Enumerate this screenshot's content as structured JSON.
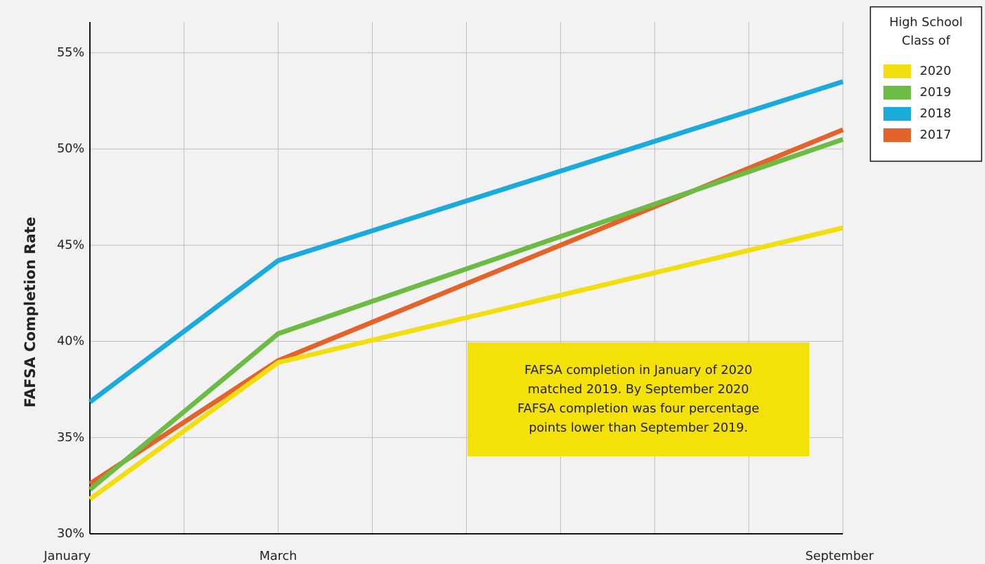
{
  "chart_data": {
    "type": "line",
    "y_axis_label": "FAFSA Completion Rate",
    "x": [
      1,
      3,
      9
    ],
    "xlim": [
      1,
      9
    ],
    "xticks": [
      {
        "value": 1,
        "label": "January"
      },
      {
        "value": 3,
        "label": "March"
      },
      {
        "value": 9,
        "label": "September"
      }
    ],
    "x_grid_minor": [
      2,
      4,
      5,
      6,
      7,
      8
    ],
    "ylim": [
      30,
      56.6
    ],
    "yticks": [
      {
        "value": 30,
        "label": "30%"
      },
      {
        "value": 35,
        "label": "35%"
      },
      {
        "value": 40,
        "label": "40%"
      },
      {
        "value": 45,
        "label": "45%"
      },
      {
        "value": 50,
        "label": "50%"
      },
      {
        "value": 55,
        "label": "55%"
      }
    ],
    "grid": true,
    "legend_title": [
      "High School",
      "Class of"
    ],
    "legend_position": "upper right",
    "series": [
      {
        "name": "2020",
        "color": "#f2de0f",
        "values": [
          31.8,
          38.9,
          45.9
        ]
      },
      {
        "name": "2019",
        "color": "#6cbb45",
        "values": [
          32.3,
          40.4,
          50.5
        ]
      },
      {
        "name": "2018",
        "color": "#1aabdc",
        "values": [
          36.85,
          44.2,
          53.5
        ]
      },
      {
        "name": "2017",
        "color": "#e4632a",
        "values": [
          32.6,
          39.0,
          51.0
        ]
      }
    ],
    "annotation": {
      "lines": [
        "FAFSA completion in January of 2020",
        "matched 2019. By September 2020",
        "FAFSA completion was four percentage",
        "points lower than September 2019."
      ],
      "color": "#f5e10a"
    }
  }
}
